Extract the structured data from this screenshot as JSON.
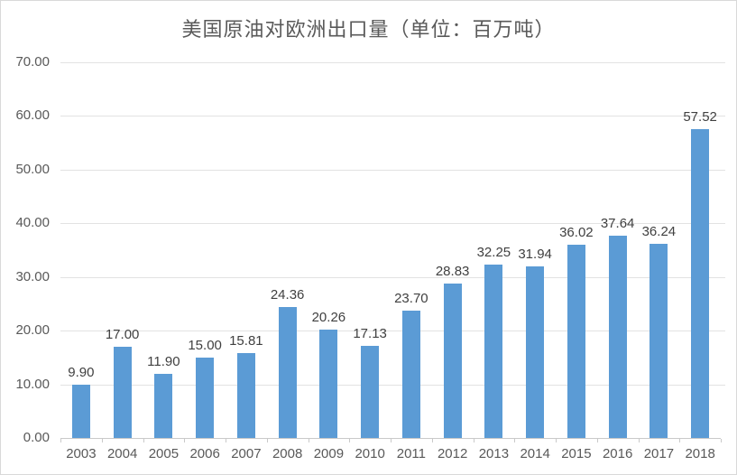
{
  "chart_data": {
    "type": "bar",
    "title": "美国原油对欧洲出口量（单位：百万吨）",
    "categories": [
      "2003",
      "2004",
      "2005",
      "2006",
      "2007",
      "2008",
      "2009",
      "2010",
      "2011",
      "2012",
      "2013",
      "2014",
      "2015",
      "2016",
      "2017",
      "2018"
    ],
    "values": [
      9.9,
      17.0,
      11.9,
      15.0,
      15.81,
      24.36,
      20.26,
      17.13,
      23.7,
      28.83,
      32.25,
      31.94,
      36.02,
      37.64,
      36.24,
      57.52
    ],
    "data_labels": [
      "9.90",
      "17.00",
      "11.90",
      "15.00",
      "15.81",
      "24.36",
      "20.26",
      "17.13",
      "23.70",
      "28.83",
      "32.25",
      "31.94",
      "36.02",
      "37.64",
      "36.24",
      "57.52"
    ],
    "xlabel": "",
    "ylabel": "",
    "ylim": [
      0,
      70
    ],
    "ytick_step": 10,
    "y_tick_labels": [
      "0.00",
      "10.00",
      "20.00",
      "30.00",
      "40.00",
      "50.00",
      "60.00",
      "70.00"
    ],
    "grid": true,
    "legend": false,
    "colors": {
      "bar": "#5B9BD5",
      "gridline": "#E2E2E2",
      "axis_line": "#C9C9C9",
      "tick_text": "#595959",
      "data_label_text": "#404040",
      "title_text": "#595959",
      "border": "#D9D9D9",
      "background": "#FFFFFF"
    }
  }
}
